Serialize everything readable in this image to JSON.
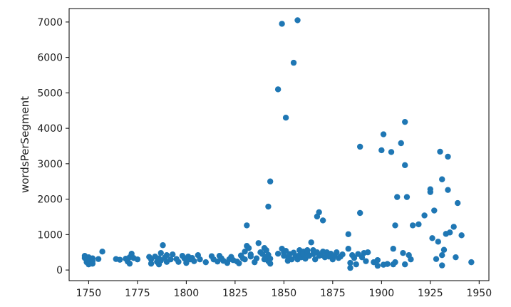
{
  "chart_data": {
    "type": "scatter",
    "title": "",
    "xlabel": "",
    "ylabel": "wordsPerSegment",
    "xlim": [
      1740,
      1955
    ],
    "ylim": [
      -300,
      7380
    ],
    "xticks": [
      1750,
      1775,
      1800,
      1825,
      1850,
      1875,
      1900,
      1925,
      1950
    ],
    "yticks": [
      0,
      1000,
      2000,
      3000,
      4000,
      5000,
      6000,
      7000
    ],
    "grid": false,
    "legend": "none",
    "marker_color": "#1f77b4",
    "points": [
      [
        1748,
        340
      ],
      [
        1748,
        400
      ],
      [
        1749,
        280
      ],
      [
        1749,
        220
      ],
      [
        1750,
        360
      ],
      [
        1750,
        160
      ],
      [
        1751,
        300
      ],
      [
        1751,
        200
      ],
      [
        1752,
        330
      ],
      [
        1752,
        250
      ],
      [
        1752,
        180
      ],
      [
        1755,
        310
      ],
      [
        1757,
        520
      ],
      [
        1764,
        310
      ],
      [
        1766,
        290
      ],
      [
        1769,
        320
      ],
      [
        1770,
        240
      ],
      [
        1771,
        360
      ],
      [
        1771,
        180
      ],
      [
        1772,
        460
      ],
      [
        1773,
        340
      ],
      [
        1775,
        300
      ],
      [
        1781,
        370
      ],
      [
        1782,
        300
      ],
      [
        1782,
        180
      ],
      [
        1784,
        380
      ],
      [
        1785,
        230
      ],
      [
        1786,
        330
      ],
      [
        1786,
        160
      ],
      [
        1787,
        480
      ],
      [
        1787,
        270
      ],
      [
        1788,
        700
      ],
      [
        1789,
        350
      ],
      [
        1790,
        420
      ],
      [
        1790,
        230
      ],
      [
        1792,
        300
      ],
      [
        1793,
        440
      ],
      [
        1795,
        310
      ],
      [
        1796,
        230
      ],
      [
        1798,
        400
      ],
      [
        1799,
        330
      ],
      [
        1800,
        270
      ],
      [
        1800,
        200
      ],
      [
        1801,
        380
      ],
      [
        1802,
        300
      ],
      [
        1803,
        340
      ],
      [
        1804,
        250
      ],
      [
        1806,
        420
      ],
      [
        1807,
        300
      ],
      [
        1810,
        220
      ],
      [
        1813,
        390
      ],
      [
        1814,
        300
      ],
      [
        1816,
        240
      ],
      [
        1817,
        400
      ],
      [
        1818,
        330
      ],
      [
        1819,
        260
      ],
      [
        1821,
        200
      ],
      [
        1822,
        300
      ],
      [
        1823,
        370
      ],
      [
        1824,
        280
      ],
      [
        1826,
        240
      ],
      [
        1827,
        190
      ],
      [
        1828,
        410
      ],
      [
        1829,
        330
      ],
      [
        1830,
        520
      ],
      [
        1830,
        300
      ],
      [
        1831,
        1260
      ],
      [
        1831,
        680
      ],
      [
        1832,
        620
      ],
      [
        1833,
        440
      ],
      [
        1833,
        380
      ],
      [
        1835,
        220
      ],
      [
        1836,
        330
      ],
      [
        1837,
        760
      ],
      [
        1838,
        500
      ],
      [
        1839,
        450
      ],
      [
        1840,
        300
      ],
      [
        1840,
        620
      ],
      [
        1841,
        560
      ],
      [
        1841,
        380
      ],
      [
        1842,
        1790
      ],
      [
        1842,
        430
      ],
      [
        1842,
        250
      ],
      [
        1843,
        2500
      ],
      [
        1843,
        320
      ],
      [
        1843,
        180
      ],
      [
        1847,
        5100
      ],
      [
        1847,
        460
      ],
      [
        1849,
        6950
      ],
      [
        1849,
        600
      ],
      [
        1850,
        500
      ],
      [
        1850,
        400
      ],
      [
        1851,
        4300
      ],
      [
        1851,
        540
      ],
      [
        1852,
        370
      ],
      [
        1852,
        260
      ],
      [
        1853,
        450
      ],
      [
        1854,
        300
      ],
      [
        1855,
        5850
      ],
      [
        1855,
        490
      ],
      [
        1856,
        400
      ],
      [
        1857,
        7050
      ],
      [
        1857,
        300
      ],
      [
        1858,
        560
      ],
      [
        1858,
        420
      ],
      [
        1859,
        360
      ],
      [
        1860,
        520
      ],
      [
        1860,
        440
      ],
      [
        1861,
        320
      ],
      [
        1862,
        480
      ],
      [
        1862,
        560
      ],
      [
        1863,
        400
      ],
      [
        1864,
        780
      ],
      [
        1865,
        450
      ],
      [
        1865,
        560
      ],
      [
        1866,
        300
      ],
      [
        1867,
        1510
      ],
      [
        1867,
        500
      ],
      [
        1868,
        1630
      ],
      [
        1868,
        400
      ],
      [
        1869,
        420
      ],
      [
        1870,
        1400
      ],
      [
        1870,
        520
      ],
      [
        1871,
        360
      ],
      [
        1872,
        500
      ],
      [
        1872,
        420
      ],
      [
        1873,
        380
      ],
      [
        1874,
        460
      ],
      [
        1875,
        300
      ],
      [
        1876,
        400
      ],
      [
        1877,
        500
      ],
      [
        1878,
        340
      ],
      [
        1879,
        380
      ],
      [
        1880,
        440
      ],
      [
        1883,
        1010
      ],
      [
        1883,
        600
      ],
      [
        1884,
        60
      ],
      [
        1884,
        200
      ],
      [
        1885,
        420
      ],
      [
        1886,
        340
      ],
      [
        1887,
        160
      ],
      [
        1888,
        450
      ],
      [
        1889,
        3480
      ],
      [
        1889,
        1610
      ],
      [
        1890,
        360
      ],
      [
        1891,
        480
      ],
      [
        1892,
        250
      ],
      [
        1893,
        500
      ],
      [
        1896,
        220
      ],
      [
        1898,
        280
      ],
      [
        1898,
        120
      ],
      [
        1900,
        3380
      ],
      [
        1901,
        3830
      ],
      [
        1901,
        150
      ],
      [
        1903,
        170
      ],
      [
        1905,
        3330
      ],
      [
        1906,
        600
      ],
      [
        1906,
        160
      ],
      [
        1907,
        1260
      ],
      [
        1907,
        220
      ],
      [
        1908,
        2060
      ],
      [
        1910,
        3580
      ],
      [
        1911,
        480
      ],
      [
        1912,
        2960
      ],
      [
        1912,
        4180
      ],
      [
        1912,
        160
      ],
      [
        1913,
        2060
      ],
      [
        1914,
        420
      ],
      [
        1915,
        300
      ],
      [
        1916,
        1260
      ],
      [
        1919,
        1290
      ],
      [
        1922,
        1540
      ],
      [
        1925,
        2280
      ],
      [
        1925,
        2200
      ],
      [
        1926,
        900
      ],
      [
        1927,
        1680
      ],
      [
        1928,
        310
      ],
      [
        1929,
        800
      ],
      [
        1930,
        3340
      ],
      [
        1931,
        2560
      ],
      [
        1931,
        420
      ],
      [
        1931,
        130
      ],
      [
        1932,
        570
      ],
      [
        1933,
        1020
      ],
      [
        1934,
        3200
      ],
      [
        1934,
        2260
      ],
      [
        1935,
        1060
      ],
      [
        1937,
        1220
      ],
      [
        1938,
        360
      ],
      [
        1939,
        1890
      ],
      [
        1941,
        980
      ],
      [
        1946,
        220
      ]
    ]
  }
}
